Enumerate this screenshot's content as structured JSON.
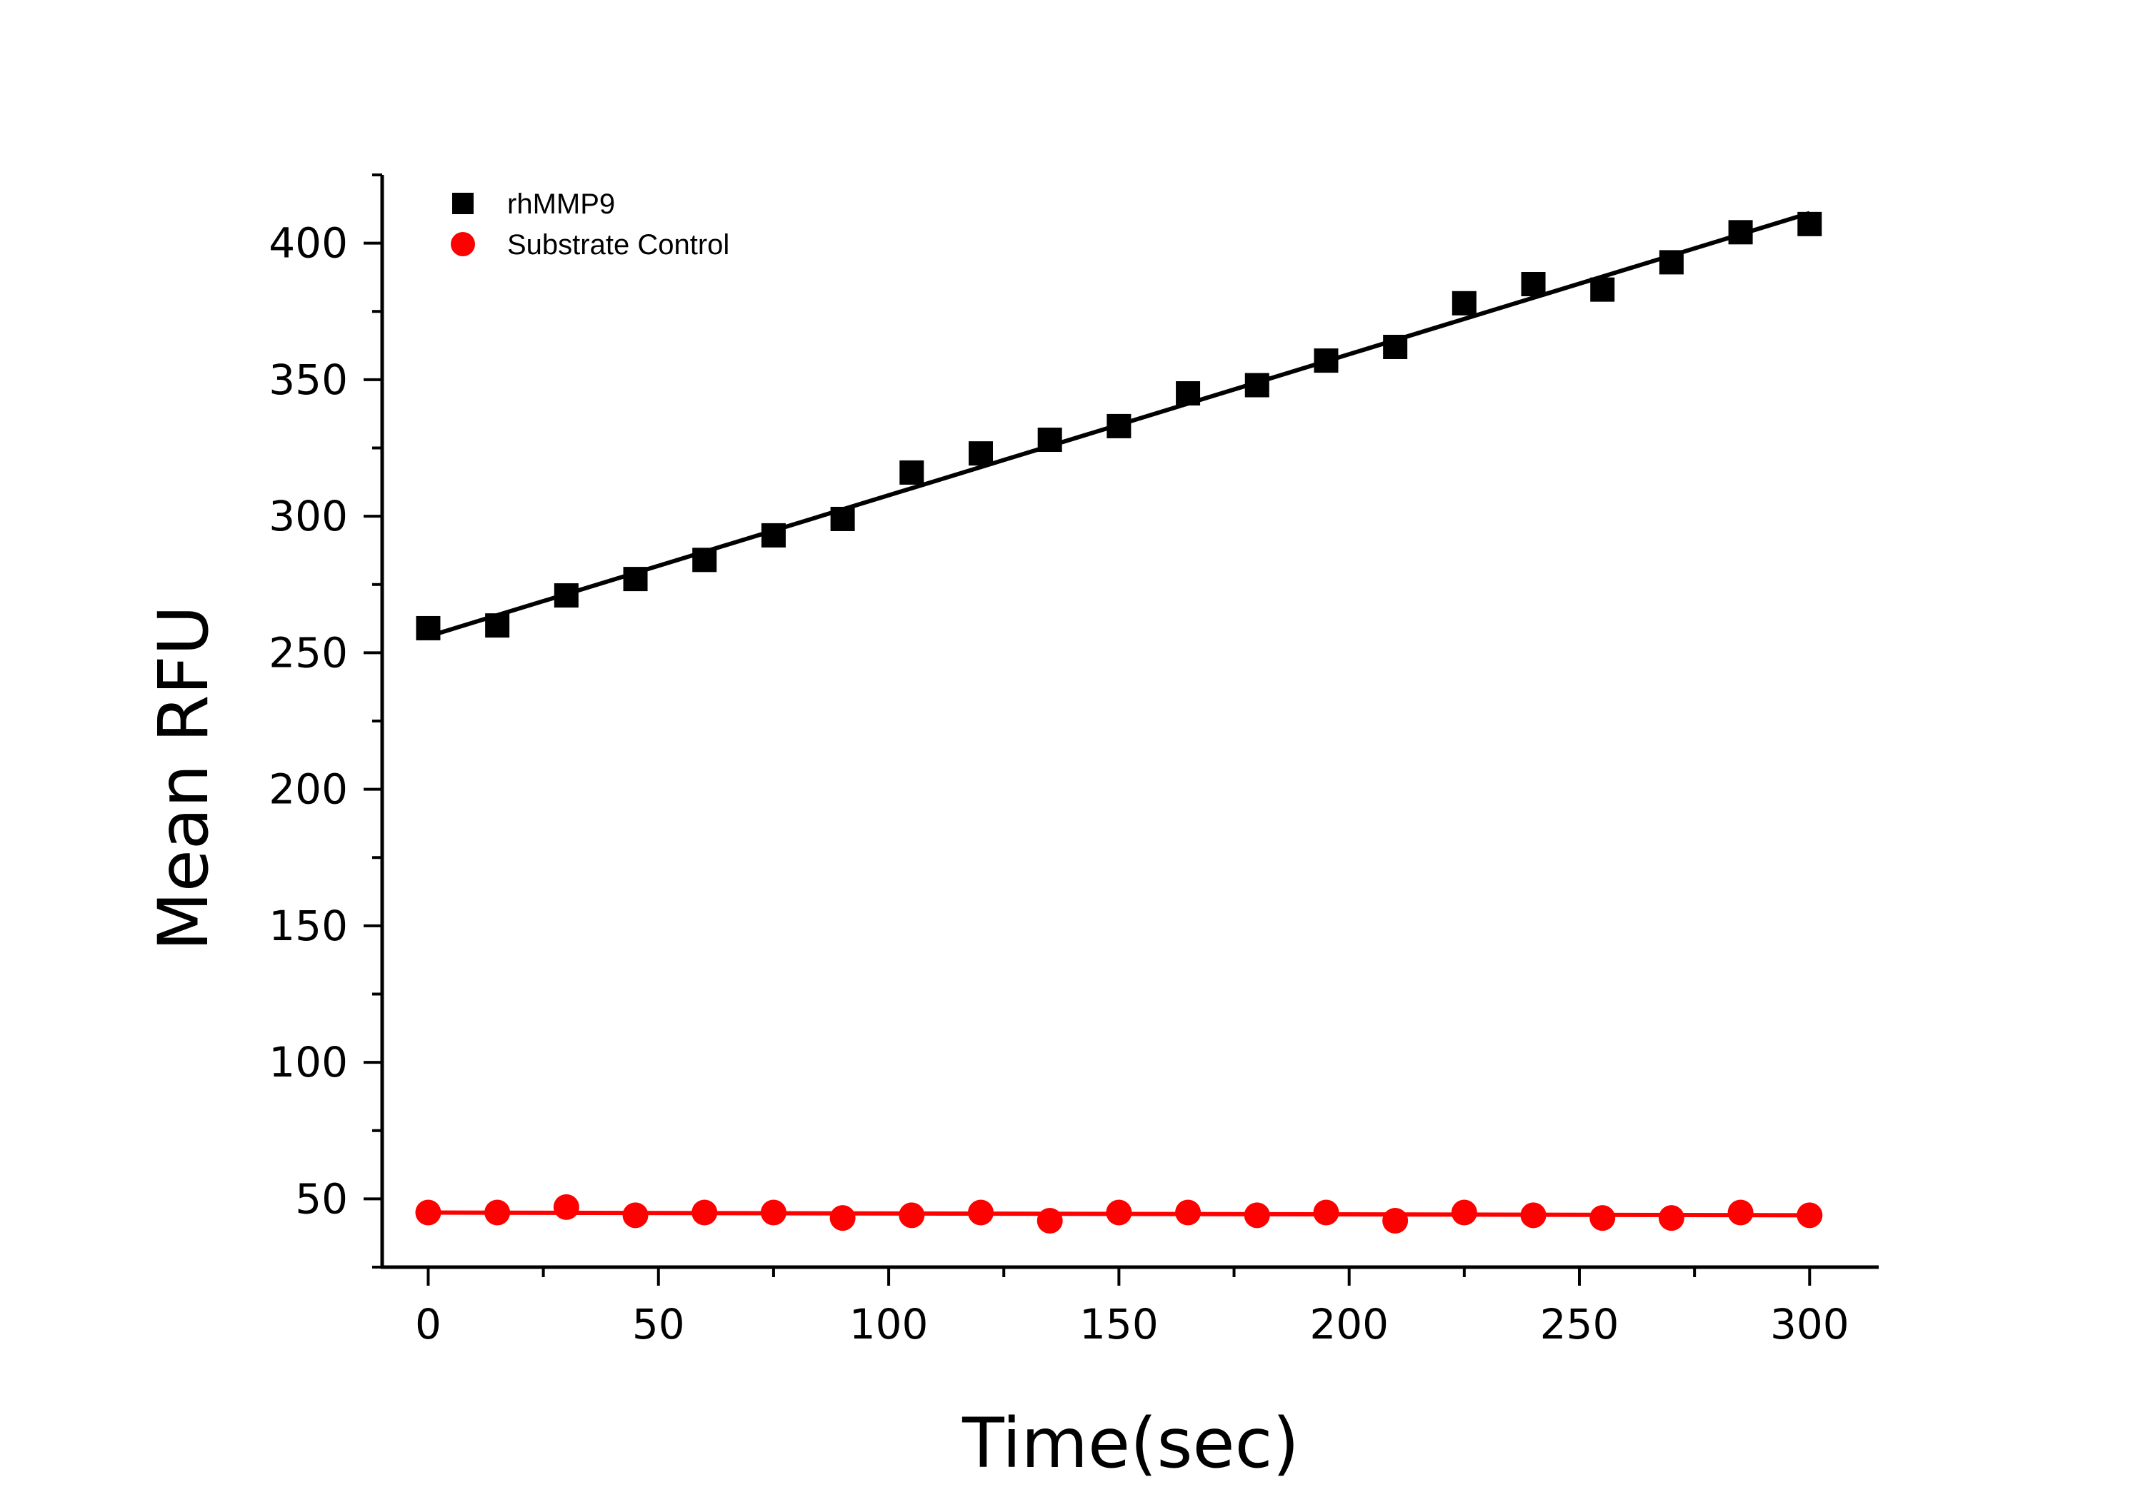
{
  "chart_data": {
    "type": "scatter",
    "xlabel": "Time(sec)",
    "ylabel": "Mean RFU",
    "xlim": [
      -10,
      315
    ],
    "ylim": [
      25,
      425
    ],
    "xticks": [
      0,
      50,
      100,
      150,
      200,
      250,
      300
    ],
    "yticks": [
      50,
      100,
      150,
      200,
      250,
      300,
      350,
      400
    ],
    "xtick_labels": [
      "0",
      "50",
      "100",
      "150",
      "200",
      "250",
      "300"
    ],
    "ytick_labels": [
      "50",
      "100",
      "150",
      "200",
      "250",
      "300",
      "350",
      "400"
    ],
    "grid": false,
    "legend_position": "top-left",
    "x": [
      0,
      15,
      30,
      45,
      60,
      75,
      90,
      105,
      120,
      135,
      150,
      165,
      180,
      195,
      210,
      225,
      240,
      255,
      270,
      285,
      300
    ],
    "series": [
      {
        "name": "rhMMP9",
        "marker": "square",
        "color": "#000000",
        "values": [
          259,
          260,
          271,
          277,
          284,
          293,
          299,
          316,
          323,
          328,
          333,
          345,
          348,
          357,
          362,
          378,
          385,
          383,
          393,
          404,
          407
        ],
        "fit_line": [
          256,
          411
        ]
      },
      {
        "name": "Substrate Control",
        "marker": "circle",
        "color": "#ff0000",
        "values": [
          45,
          45,
          47,
          44,
          45,
          45,
          43,
          44,
          45,
          42,
          45,
          45,
          44,
          45,
          42,
          45,
          44,
          43,
          43,
          45,
          44
        ],
        "fit_line": [
          45,
          44
        ]
      }
    ]
  }
}
